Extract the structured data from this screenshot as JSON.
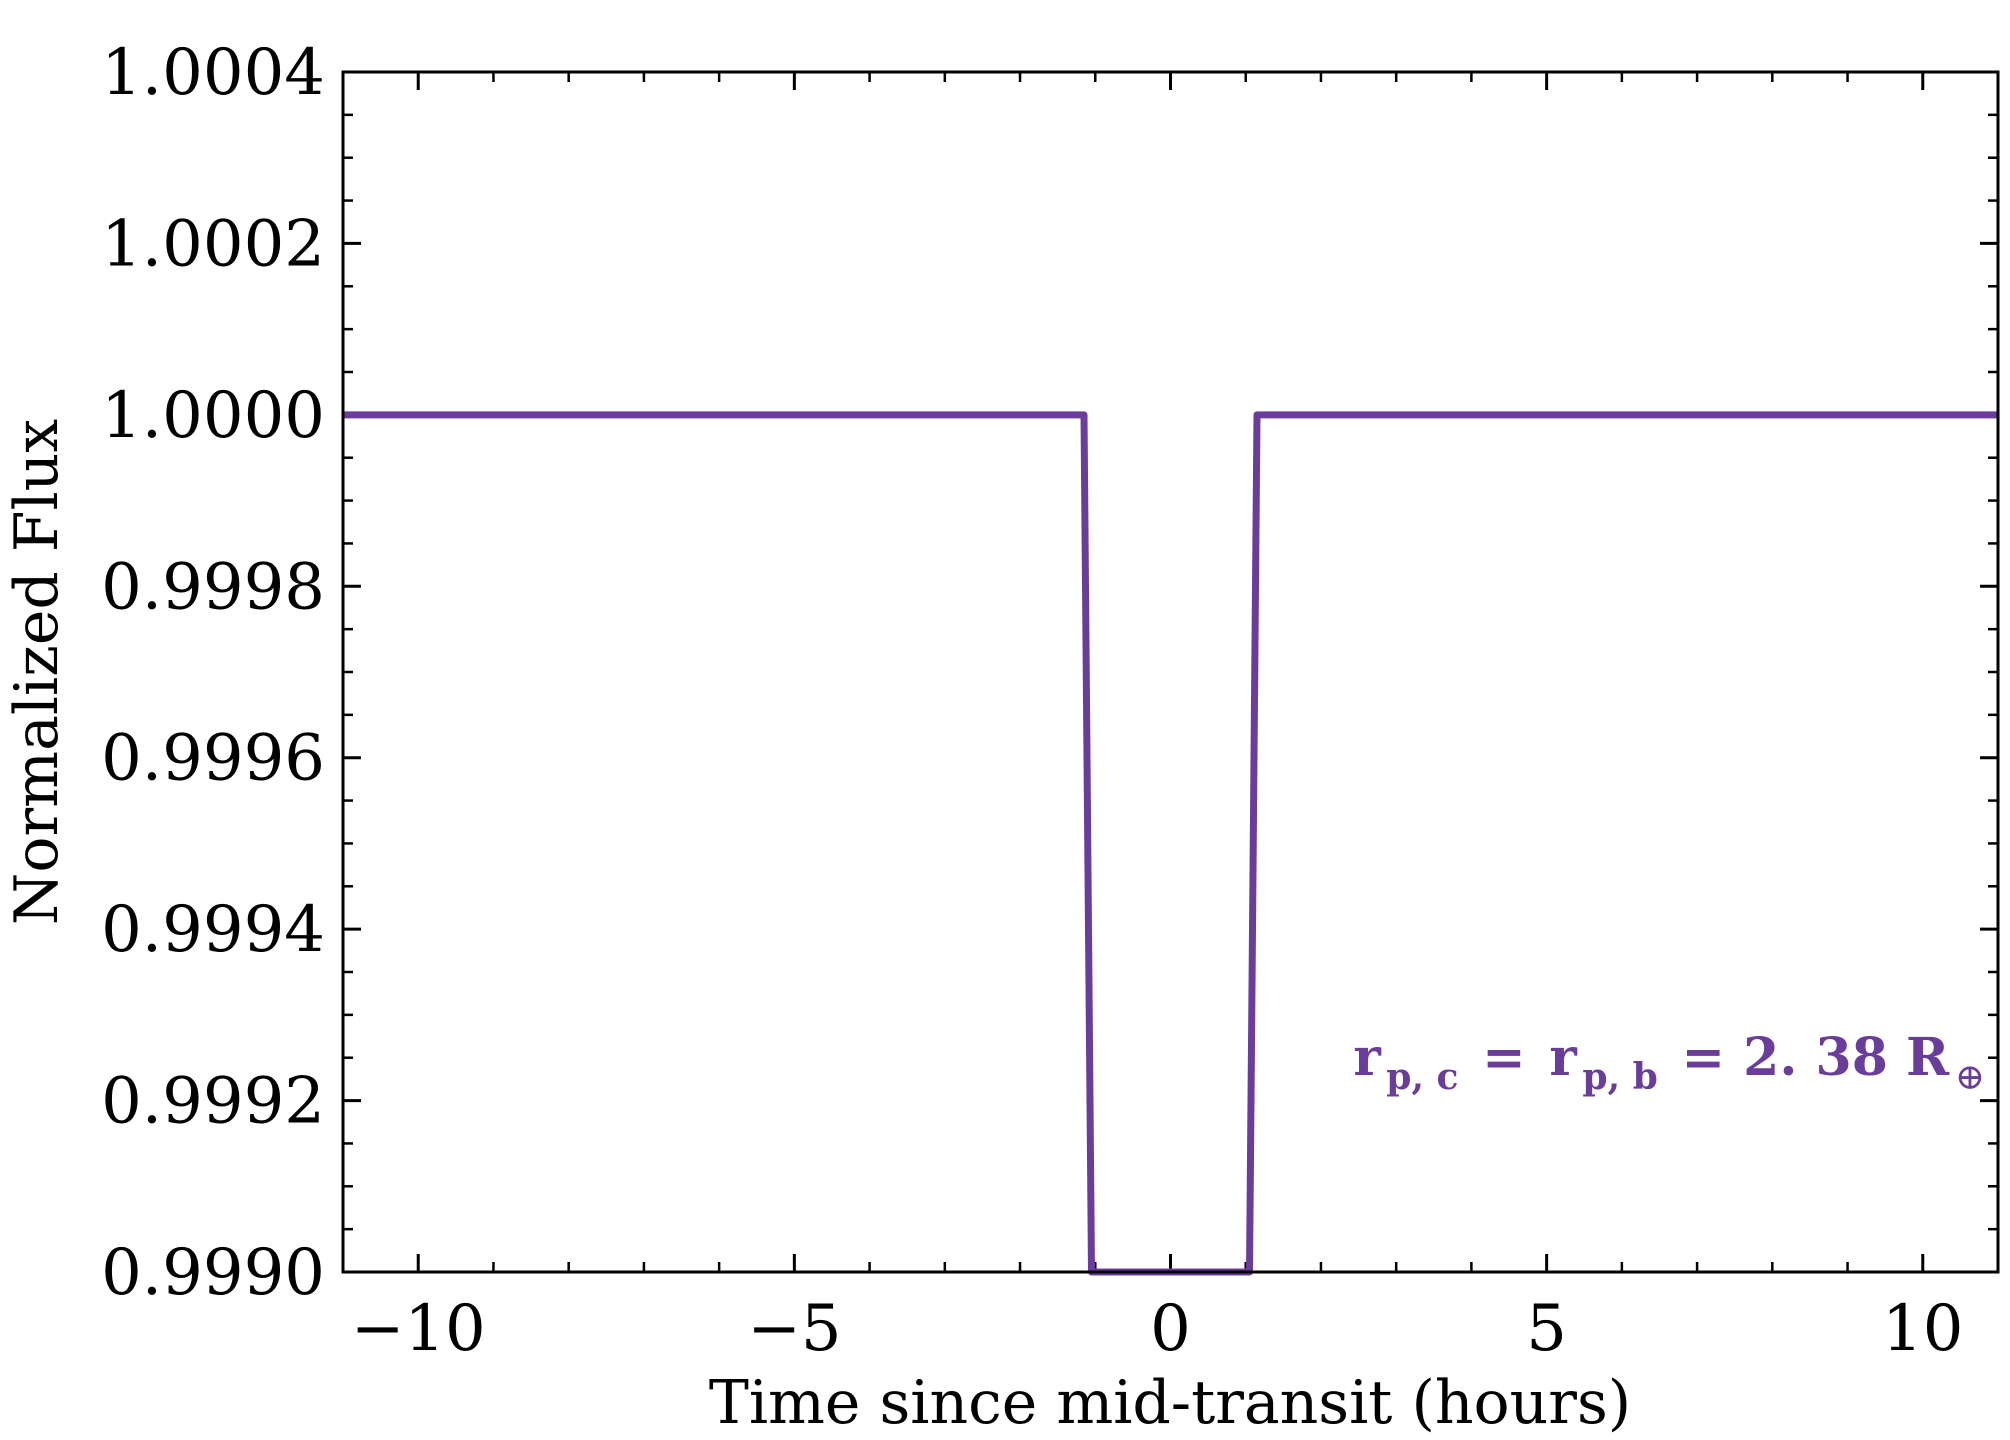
{
  "chart_data": {
    "type": "line",
    "xlabel": "Time since mid-transit (hours)",
    "ylabel": "Normalized Flux",
    "xlim": [
      -11,
      11
    ],
    "ylim": [
      0.999,
      1.0004
    ],
    "x_ticks": [
      -10,
      -5,
      0,
      5,
      10
    ],
    "x_tick_labels": [
      "−10",
      "−5",
      "0",
      "5",
      "10"
    ],
    "y_ticks": [
      0.999,
      0.9992,
      0.9994,
      0.9996,
      0.9998,
      1.0,
      1.0002,
      1.0004
    ],
    "y_tick_labels": [
      "0.9990",
      "0.9992",
      "0.9994",
      "0.9996",
      "0.9998",
      "1.0000",
      "1.0002",
      "1.0004"
    ],
    "grid": false,
    "line_color": "#6a3d9a",
    "series": [
      {
        "x": [
          -11,
          -1.15,
          -1.05,
          1.05,
          1.15,
          11
        ],
        "y": [
          1.0,
          1.0,
          0.999,
          0.999,
          1.0,
          1.0
        ]
      }
    ],
    "annotation": {
      "r1": "r",
      "sub1": "p, c",
      "eq1": " = ",
      "r2": "r",
      "sub2": "p, b",
      "eq2": " = 2. 38 R",
      "sub3": "⊕"
    }
  }
}
